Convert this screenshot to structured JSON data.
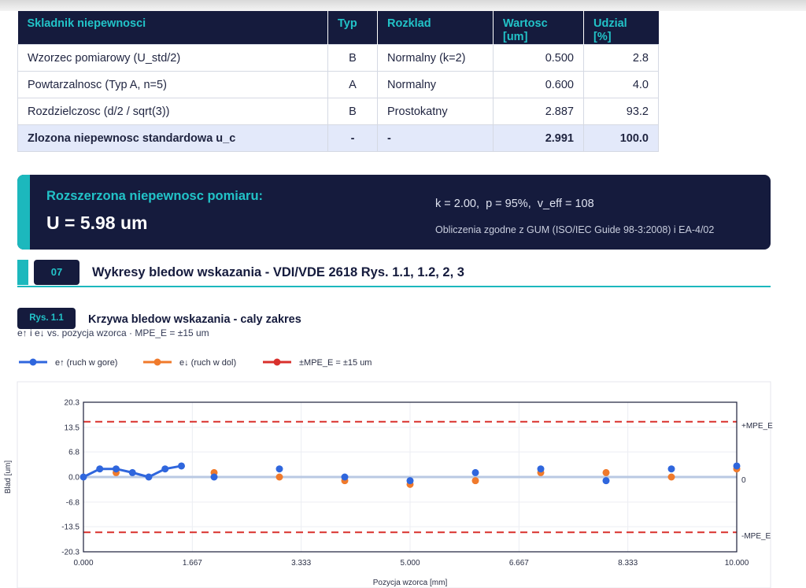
{
  "table": {
    "headers": [
      "Skladnik niepewnosci",
      "Typ",
      "Rozklad",
      "Wartosc\n[um]",
      "Udzial\n[%]"
    ],
    "header_lines": [
      [
        "Skladnik niepewnosci"
      ],
      [
        "Typ"
      ],
      [
        "Rozklad"
      ],
      [
        "Wartosc",
        "[um]"
      ],
      [
        "Udzial",
        "[%]"
      ]
    ],
    "rows": [
      [
        "Wzorzec pomiarowy (U_std/2)",
        "B",
        "Normalny (k=2)",
        "0.500",
        "2.8"
      ],
      [
        "Powtarzalnosc (Typ A, n=5)",
        "A",
        "Normalny",
        "0.600",
        "4.0"
      ],
      [
        "Rozdzielczosc (d/2 / sqrt(3))",
        "B",
        "Prostokatny",
        "2.887",
        "93.2"
      ]
    ],
    "total": [
      "Zlozona niepewnosc standardowa u_c",
      "-",
      "-",
      "2.991",
      "100.0"
    ]
  },
  "expanded": {
    "title": "Rozszerzona niepewnosc pomiaru:",
    "value": "U = 5.98 um",
    "params": "k = 2.00,  p = 95%,  v_eff = 108",
    "note": "Obliczenia zgodne z GUM (ISO/IEC Guide 98-3:2008) i EA-4/02"
  },
  "section": {
    "number": "07",
    "title": "Wykresy bledow wskazania - VDI/VDE 2618 Rys. 1.1, 1.2, 2, 3"
  },
  "figure": {
    "badge": "Rys. 1.1",
    "title": "Krzywa bledow wskazania - caly zakres",
    "subtitle": "e↑ i e↓ vs. pozycja wzorca · MPE_E = ±15 um"
  },
  "chart_data": {
    "type": "line",
    "xlabel": "Pozycja wzorca [mm]",
    "ylabel": "Blad [um]",
    "xlim": [
      0,
      10
    ],
    "ylim": [
      -20.3,
      20.3
    ],
    "x_ticks": [
      0,
      1.667,
      3.333,
      5,
      6.667,
      8.333,
      10
    ],
    "x_tick_labels": [
      "0.000",
      "1.667",
      "3.333",
      "5.000",
      "6.667",
      "8.333",
      "10.000"
    ],
    "y_ticks": [
      20.3,
      13.5,
      6.8,
      0,
      -6.8,
      -13.5,
      -20.3
    ],
    "y_tick_labels": [
      "20.3",
      "13.5",
      "6.8",
      "0.0",
      "-6.8",
      "-13.5",
      "-20.3"
    ],
    "legend_position": "top-left",
    "grid": true,
    "series": [
      {
        "name": "e↑ (ruch w gore)",
        "color": "#2f66dd",
        "mode": "lines+markers",
        "x": [
          0,
          0.25,
          0.5,
          0.75,
          1,
          1.25,
          1.5
        ],
        "y": [
          0,
          2.2,
          2.2,
          1.2,
          0,
          2.2,
          3.0
        ]
      },
      {
        "name": "",
        "color": "#2f66dd",
        "mode": "markers",
        "x": [
          2,
          3,
          4,
          5,
          6,
          7,
          8,
          9,
          10
        ],
        "y": [
          0,
          2.2,
          0,
          -1.0,
          1.2,
          2.2,
          -1.0,
          2.2,
          3.0
        ]
      },
      {
        "name": "e↓ (ruch w dol)",
        "color": "#f07a2b",
        "mode": "markers",
        "x": [
          0.5,
          2,
          3,
          4,
          5,
          6,
          7,
          8,
          9,
          10
        ],
        "y": [
          1.2,
          1.2,
          0,
          -1.0,
          -2.0,
          -1.0,
          1.2,
          1.2,
          0,
          2.2
        ]
      }
    ],
    "mpe": {
      "legend": "±MPE_E = ±15 um",
      "color": "#d9302c",
      "upper": 15,
      "lower": -15,
      "upper_label": "+MPE_E",
      "lower_label": "-MPE_E"
    },
    "zero_label": "0"
  }
}
